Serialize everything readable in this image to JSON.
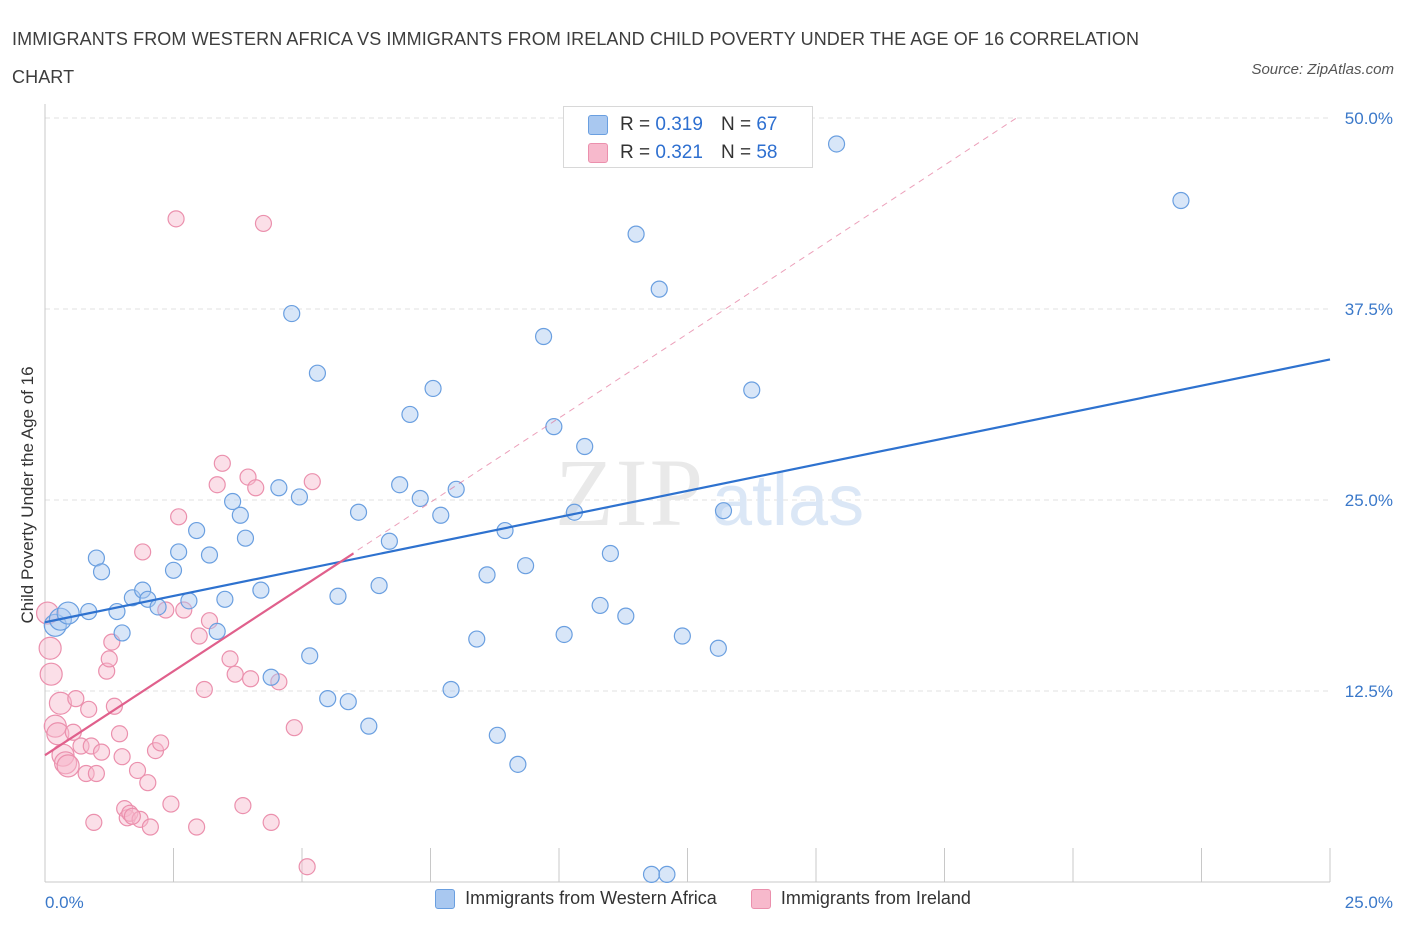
{
  "title": "IMMIGRANTS FROM WESTERN AFRICA VS IMMIGRANTS FROM IRELAND CHILD POVERTY UNDER THE AGE OF 16 CORRELATION CHART",
  "source": "Source: ZipAtlas.com",
  "watermark": {
    "zip": "ZIP",
    "atlas": "atlas"
  },
  "legend_top": {
    "rows": [
      {
        "r_label": "R =",
        "r_value": "0.319",
        "n_label": "N =",
        "n_value": "67"
      },
      {
        "r_label": "R =",
        "r_value": "0.321",
        "n_label": "N =",
        "n_value": "58"
      }
    ]
  },
  "legend_bottom": [
    "Immigrants from Western Africa",
    "Immigrants from Ireland"
  ],
  "colors": {
    "blue_fill": "#a9c8f0",
    "blue_stroke": "#6a9fe0",
    "blue_line": "#2e72cf",
    "pink_fill": "#f7b9cc",
    "pink_stroke": "#eb90ad",
    "pink_line": "#e0608c",
    "grid": "#e2e2e2",
    "axis_text": "#3a78c9"
  },
  "chart_data": {
    "type": "scatter",
    "title": "IMMIGRANTS FROM WESTERN AFRICA VS IMMIGRANTS FROM IRELAND CHILD POVERTY UNDER THE AGE OF 16 CORRELATION CHART",
    "xlabel": "",
    "ylabel": "Child Poverty Under the Age of 16",
    "xlim": [
      0,
      25
    ],
    "ylim": [
      0,
      50
    ],
    "x_tick_labels": [
      "0.0%",
      "25.0%"
    ],
    "y_tick_labels": [
      "12.5%",
      "25.0%",
      "37.5%",
      "50.0%"
    ],
    "y_ticks": [
      12.5,
      25,
      37.5,
      50
    ],
    "grid": true,
    "series": [
      {
        "name": "Immigrants from Western Africa",
        "R": 0.319,
        "N": 67,
        "trend": {
          "x": [
            0,
            25
          ],
          "y": [
            17.0,
            34.2
          ]
        },
        "points": [
          [
            0.2,
            16.8
          ],
          [
            0.3,
            17.2
          ],
          [
            0.45,
            17.6
          ],
          [
            0.85,
            17.7
          ],
          [
            1.0,
            21.2
          ],
          [
            1.1,
            20.3
          ],
          [
            1.4,
            17.7
          ],
          [
            1.5,
            16.3
          ],
          [
            1.7,
            18.6
          ],
          [
            1.9,
            19.1
          ],
          [
            2.0,
            18.5
          ],
          [
            2.2,
            18.0
          ],
          [
            2.5,
            20.4
          ],
          [
            2.6,
            21.6
          ],
          [
            2.8,
            18.4
          ],
          [
            2.95,
            23.0
          ],
          [
            3.2,
            21.4
          ],
          [
            3.35,
            16.4
          ],
          [
            3.5,
            18.5
          ],
          [
            3.65,
            24.9
          ],
          [
            3.8,
            24.0
          ],
          [
            3.9,
            22.5
          ],
          [
            4.2,
            19.1
          ],
          [
            4.4,
            13.4
          ],
          [
            4.55,
            25.8
          ],
          [
            4.8,
            37.2
          ],
          [
            4.95,
            25.2
          ],
          [
            5.15,
            14.8
          ],
          [
            5.3,
            33.3
          ],
          [
            5.5,
            12.0
          ],
          [
            5.7,
            18.7
          ],
          [
            5.9,
            11.8
          ],
          [
            6.1,
            24.2
          ],
          [
            6.3,
            10.2
          ],
          [
            6.5,
            19.4
          ],
          [
            6.7,
            22.3
          ],
          [
            6.9,
            26.0
          ],
          [
            7.1,
            30.6
          ],
          [
            7.3,
            25.1
          ],
          [
            7.55,
            32.3
          ],
          [
            7.7,
            24.0
          ],
          [
            7.9,
            12.6
          ],
          [
            8.0,
            25.7
          ],
          [
            8.4,
            15.9
          ],
          [
            8.6,
            20.1
          ],
          [
            8.8,
            9.6
          ],
          [
            8.95,
            23.0
          ],
          [
            9.2,
            7.7
          ],
          [
            9.35,
            20.7
          ],
          [
            9.7,
            35.7
          ],
          [
            9.9,
            29.8
          ],
          [
            10.1,
            16.2
          ],
          [
            10.3,
            24.2
          ],
          [
            10.5,
            28.5
          ],
          [
            10.8,
            18.1
          ],
          [
            11.0,
            21.5
          ],
          [
            11.3,
            17.4
          ],
          [
            11.5,
            42.4
          ],
          [
            11.8,
            0.5
          ],
          [
            11.95,
            38.8
          ],
          [
            12.1,
            0.5
          ],
          [
            12.4,
            16.1
          ],
          [
            13.1,
            15.3
          ],
          [
            13.2,
            24.3
          ],
          [
            13.75,
            32.2
          ],
          [
            15.4,
            48.3
          ],
          [
            22.1,
            44.6
          ]
        ]
      },
      {
        "name": "Immigrants from Ireland",
        "R": 0.321,
        "N": 58,
        "trend": {
          "x": [
            0,
            6.0
          ],
          "y": [
            8.3,
            21.5
          ]
        },
        "trend_extended": {
          "x": [
            0,
            18.9
          ],
          "y": [
            8.3,
            50.0
          ]
        },
        "points": [
          [
            0.05,
            17.6
          ],
          [
            0.1,
            15.3
          ],
          [
            0.12,
            13.6
          ],
          [
            0.2,
            10.2
          ],
          [
            0.25,
            9.7
          ],
          [
            0.3,
            11.7
          ],
          [
            0.35,
            8.3
          ],
          [
            0.4,
            7.8
          ],
          [
            0.45,
            7.6
          ],
          [
            0.55,
            9.8
          ],
          [
            0.6,
            12.0
          ],
          [
            0.7,
            8.9
          ],
          [
            0.8,
            7.1
          ],
          [
            0.85,
            11.3
          ],
          [
            0.9,
            8.9
          ],
          [
            0.95,
            3.9
          ],
          [
            1.0,
            7.1
          ],
          [
            1.1,
            8.5
          ],
          [
            1.2,
            13.8
          ],
          [
            1.25,
            14.6
          ],
          [
            1.3,
            15.7
          ],
          [
            1.35,
            11.5
          ],
          [
            1.45,
            9.7
          ],
          [
            1.5,
            8.2
          ],
          [
            1.55,
            4.8
          ],
          [
            1.6,
            4.2
          ],
          [
            1.65,
            4.5
          ],
          [
            1.8,
            7.3
          ],
          [
            1.85,
            4.1
          ],
          [
            1.9,
            21.6
          ],
          [
            2.0,
            6.5
          ],
          [
            2.05,
            3.6
          ],
          [
            2.15,
            8.6
          ],
          [
            2.25,
            9.1
          ],
          [
            2.35,
            17.8
          ],
          [
            2.45,
            5.1
          ],
          [
            2.55,
            43.4
          ],
          [
            2.6,
            23.9
          ],
          [
            2.7,
            17.8
          ],
          [
            2.95,
            3.6
          ],
          [
            3.0,
            16.1
          ],
          [
            3.1,
            12.6
          ],
          [
            3.2,
            17.1
          ],
          [
            3.35,
            26.0
          ],
          [
            3.45,
            27.4
          ],
          [
            3.6,
            14.6
          ],
          [
            3.7,
            13.6
          ],
          [
            3.85,
            5.0
          ],
          [
            3.95,
            26.5
          ],
          [
            4.0,
            13.3
          ],
          [
            4.1,
            25.8
          ],
          [
            4.25,
            43.1
          ],
          [
            4.4,
            3.9
          ],
          [
            4.55,
            13.1
          ],
          [
            4.85,
            10.1
          ],
          [
            5.1,
            1.0
          ],
          [
            5.2,
            26.2
          ],
          [
            1.7,
            4.3
          ]
        ]
      }
    ]
  }
}
